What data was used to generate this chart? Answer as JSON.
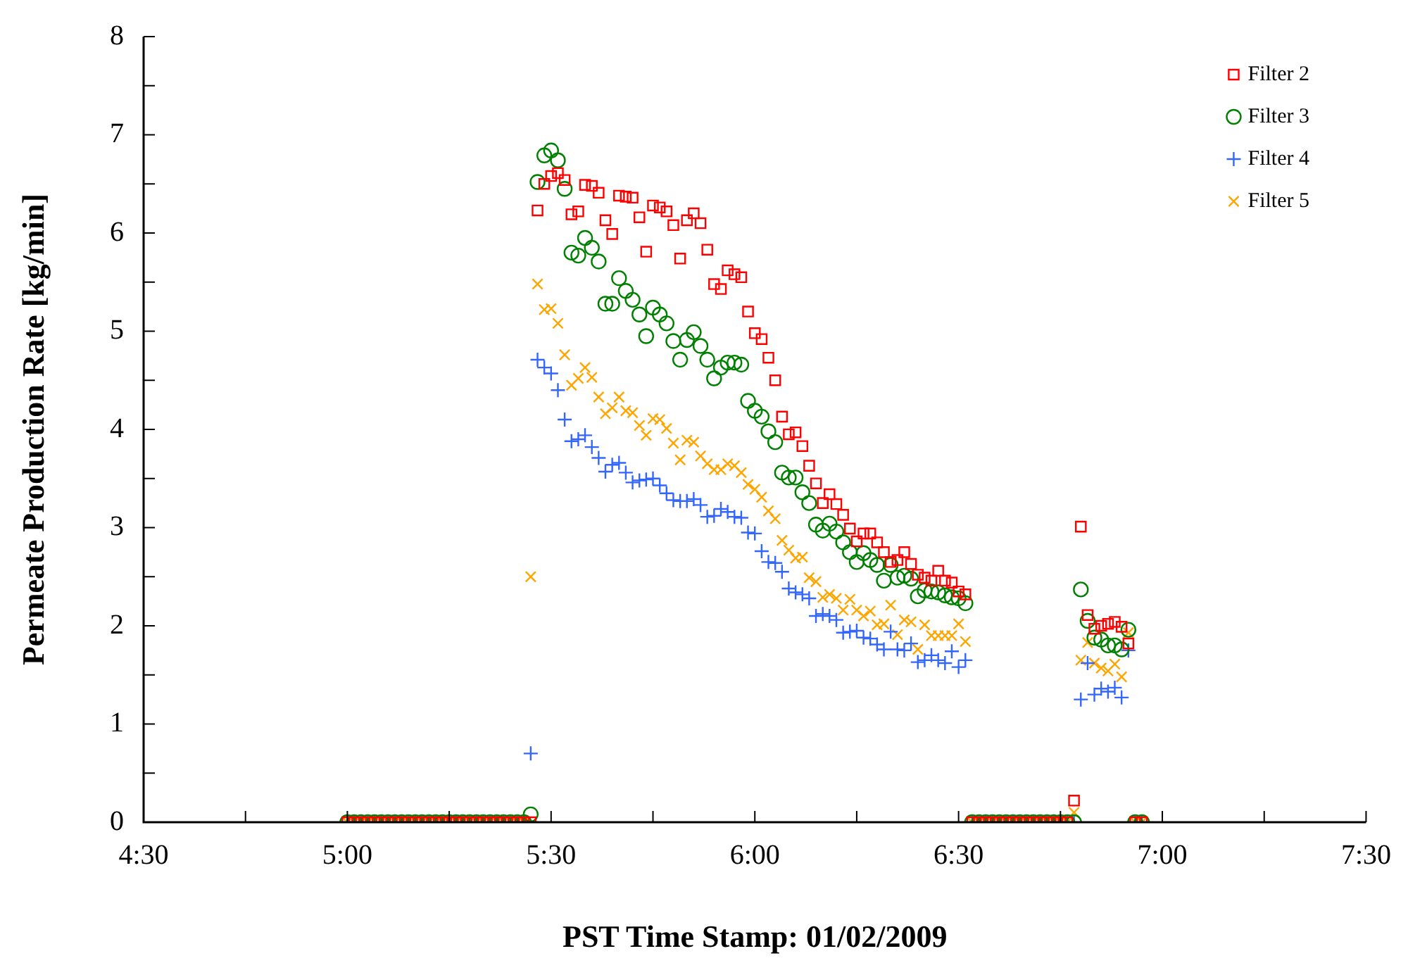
{
  "chart_data": {
    "type": "scatter",
    "xlabel": "PST Time Stamp: 01/02/2009",
    "ylabel": "Permeate Production Rate [kg/min]",
    "xlim": [
      4.5,
      7.5
    ],
    "xticks": [
      {
        "value": 4.5,
        "label": "4:30"
      },
      {
        "value": 4.75,
        "label": null
      },
      {
        "value": 5,
        "label": "5:00"
      },
      {
        "value": 5.25,
        "label": null
      },
      {
        "value": 5.5,
        "label": "5:30"
      },
      {
        "value": 5.75,
        "label": null
      },
      {
        "value": 6,
        "label": "6:00"
      },
      {
        "value": 6.25,
        "label": null
      },
      {
        "value": 6.5,
        "label": "6:30"
      },
      {
        "value": 6.75,
        "label": null
      },
      {
        "value": 7,
        "label": "7:00"
      },
      {
        "value": 7.25,
        "label": null
      },
      {
        "value": 7.5,
        "label": "7:30"
      }
    ],
    "ylim": [
      0,
      8
    ],
    "yticks": [
      0,
      {
        "value": 0.5,
        "label": null
      },
      1,
      {
        "value": 1.5,
        "label": null
      },
      2,
      {
        "value": 2.5,
        "label": null
      },
      3,
      {
        "value": 3.5,
        "label": null
      },
      4,
      {
        "value": 4.5,
        "label": null
      },
      5,
      {
        "value": 5.5,
        "label": null
      },
      6,
      {
        "value": 6.5,
        "label": null
      },
      7,
      {
        "value": 7.5,
        "label": null
      },
      8
    ],
    "legend": "top right",
    "grid": false,
    "x": [
      5,
      5.0167,
      5.0333,
      5.05,
      5.0667,
      5.0833,
      5.1,
      5.1167,
      5.1333,
      5.15,
      5.1667,
      5.1833,
      5.2,
      5.2167,
      5.2333,
      5.25,
      5.2667,
      5.2833,
      5.3,
      5.3167,
      5.3333,
      5.35,
      5.3667,
      5.3833,
      5.4,
      5.4167,
      5.4333,
      5.45,
      5.4667,
      5.4833,
      5.5,
      5.5167,
      5.5333,
      5.55,
      5.5667,
      5.5833,
      5.6,
      5.6167,
      5.6333,
      5.65,
      5.6667,
      5.6833,
      5.7,
      5.7167,
      5.7333,
      5.75,
      5.7667,
      5.7833,
      5.8,
      5.8167,
      5.8333,
      5.85,
      5.8667,
      5.8833,
      5.9,
      5.9167,
      5.9333,
      5.95,
      5.9667,
      5.9833,
      6,
      6.0167,
      6.0333,
      6.05,
      6.0667,
      6.0833,
      6.1,
      6.1167,
      6.1333,
      6.15,
      6.1667,
      6.1833,
      6.2,
      6.2167,
      6.2333,
      6.25,
      6.2667,
      6.2833,
      6.3,
      6.3167,
      6.3333,
      6.35,
      6.3667,
      6.3833,
      6.4,
      6.4167,
      6.4333,
      6.45,
      6.4667,
      6.4833,
      6.5,
      6.5167,
      6.5333,
      6.55,
      6.5667,
      6.5833,
      6.6,
      6.6167,
      6.6333,
      6.65,
      6.6667,
      6.6833,
      6.7,
      6.7167,
      6.7333,
      6.75,
      6.7667,
      6.7833,
      6.8,
      6.8167,
      6.8333,
      6.85,
      6.8667,
      6.8833,
      6.9,
      6.9167,
      6.9333,
      6.95
    ],
    "series": [
      {
        "name": "Filter 2",
        "color": "#ff0000",
        "marker": "square",
        "values": [
          0,
          0,
          0,
          0,
          0,
          0,
          0,
          0,
          0,
          0,
          0,
          0,
          0,
          0,
          0,
          0,
          0,
          0,
          0,
          0,
          0,
          0,
          0,
          0,
          0,
          0,
          0,
          0,
          6.23,
          6.5,
          6.58,
          6.61,
          6.54,
          6.19,
          6.22,
          6.49,
          6.48,
          6.41,
          6.13,
          5.99,
          6.38,
          6.37,
          6.36,
          6.16,
          5.81,
          6.28,
          6.26,
          6.22,
          6.08,
          5.74,
          6.13,
          6.2,
          6.1,
          5.83,
          5.48,
          5.43,
          5.62,
          5.58,
          5.55,
          5.2,
          4.98,
          4.92,
          4.73,
          4.5,
          4.13,
          3.95,
          3.97,
          3.83,
          3.63,
          3.45,
          3.25,
          3.34,
          3.24,
          3.13,
          2.99,
          2.86,
          2.94,
          2.94,
          2.85,
          2.75,
          2.65,
          2.67,
          2.75,
          2.63,
          2.52,
          2.49,
          2.46,
          2.56,
          2.46,
          2.44,
          2.35,
          2.32,
          0,
          0,
          0,
          0,
          0,
          0,
          0,
          0,
          0,
          0,
          0,
          0,
          0,
          0,
          0,
          0.22,
          3.01,
          2.11,
          1.97,
          2.0,
          2.02,
          2.04,
          1.99,
          1.82,
          0,
          0
        ]
      },
      {
        "name": "Filter 3",
        "color": "#008000",
        "marker": "circle",
        "values": [
          0,
          0,
          0,
          0,
          0,
          0,
          0,
          0,
          0,
          0,
          0,
          0,
          0,
          0,
          0,
          0,
          0,
          0,
          0,
          0,
          0,
          0,
          0,
          0,
          0,
          0,
          0,
          0.08,
          6.52,
          6.79,
          6.84,
          6.74,
          6.45,
          5.8,
          5.77,
          5.95,
          5.85,
          5.71,
          5.28,
          5.28,
          5.54,
          5.41,
          5.32,
          5.17,
          4.95,
          5.24,
          5.17,
          5.08,
          4.9,
          4.71,
          4.91,
          4.99,
          4.85,
          4.71,
          4.52,
          4.63,
          4.68,
          4.68,
          4.66,
          4.29,
          4.19,
          4.13,
          3.98,
          3.87,
          3.56,
          3.51,
          3.51,
          3.36,
          3.25,
          3.03,
          2.97,
          3.04,
          2.96,
          2.85,
          2.75,
          2.65,
          2.74,
          2.67,
          2.62,
          2.46,
          2.62,
          2.49,
          2.51,
          2.48,
          2.3,
          2.36,
          2.35,
          2.34,
          2.31,
          2.29,
          2.28,
          2.23,
          0,
          0,
          0,
          0,
          0,
          0,
          0,
          0,
          0,
          0,
          0,
          0,
          0,
          0,
          0,
          0,
          2.37,
          2.05,
          1.88,
          1.86,
          1.8,
          1.8,
          1.76,
          1.96,
          0,
          0
        ]
      },
      {
        "name": "Filter 4",
        "color": "#3366ff",
        "marker": "cross",
        "values": [
          0,
          0,
          0,
          0,
          0,
          0,
          0,
          0,
          0,
          0,
          0,
          0,
          0,
          0,
          0,
          0,
          0,
          0,
          0,
          0,
          0,
          0,
          0,
          0,
          0,
          0,
          0,
          0.7,
          4.71,
          4.63,
          4.57,
          4.4,
          4.1,
          3.88,
          3.9,
          3.94,
          3.82,
          3.71,
          3.57,
          3.64,
          3.66,
          3.56,
          3.46,
          3.48,
          3.49,
          3.5,
          3.43,
          3.35,
          3.28,
          3.27,
          3.27,
          3.29,
          3.23,
          3.11,
          3.12,
          3.19,
          3.16,
          3.11,
          3.1,
          2.95,
          2.94,
          2.76,
          2.65,
          2.64,
          2.55,
          2.38,
          2.34,
          2.32,
          2.28,
          2.1,
          2.12,
          2.1,
          2.06,
          1.93,
          1.94,
          1.95,
          1.88,
          1.87,
          1.81,
          1.76,
          1.94,
          1.76,
          1.75,
          1.82,
          1.63,
          1.65,
          1.7,
          1.65,
          1.62,
          1.74,
          1.58,
          1.65,
          0,
          0,
          0,
          0,
          0,
          0,
          0,
          0,
          0,
          0,
          0,
          0,
          0,
          0,
          0,
          0,
          1.25,
          1.62,
          1.3,
          1.36,
          1.33,
          1.37,
          1.27,
          1.75,
          0,
          0
        ]
      },
      {
        "name": "Filter 5",
        "color": "#ffa500",
        "marker": "x",
        "values": [
          0,
          0,
          0,
          0,
          0,
          0,
          0,
          0,
          0,
          0,
          0,
          0,
          0,
          0,
          0,
          0,
          0,
          0,
          0,
          0,
          0,
          0,
          0,
          0,
          0,
          0,
          0,
          2.5,
          5.48,
          5.22,
          5.23,
          5.08,
          4.76,
          4.45,
          4.52,
          4.63,
          4.53,
          4.33,
          4.16,
          4.22,
          4.33,
          4.19,
          4.17,
          4.04,
          3.94,
          4.11,
          4.1,
          4.01,
          3.86,
          3.69,
          3.89,
          3.87,
          3.73,
          3.65,
          3.59,
          3.59,
          3.65,
          3.63,
          3.56,
          3.44,
          3.39,
          3.31,
          3.17,
          3.09,
          2.87,
          2.77,
          2.69,
          2.7,
          2.49,
          2.45,
          2.29,
          2.32,
          2.28,
          2.16,
          2.27,
          2.16,
          2.1,
          2.15,
          2.01,
          2.02,
          2.21,
          1.91,
          2.06,
          2.04,
          1.76,
          2.01,
          1.9,
          1.9,
          1.9,
          1.9,
          2.02,
          1.84,
          0,
          0,
          0,
          0,
          0,
          0,
          0,
          0,
          0,
          0,
          0,
          0,
          0,
          0,
          0,
          0.1,
          1.65,
          1.83,
          1.62,
          1.57,
          1.54,
          1.61,
          1.48,
          1.93,
          0,
          0
        ]
      }
    ]
  }
}
